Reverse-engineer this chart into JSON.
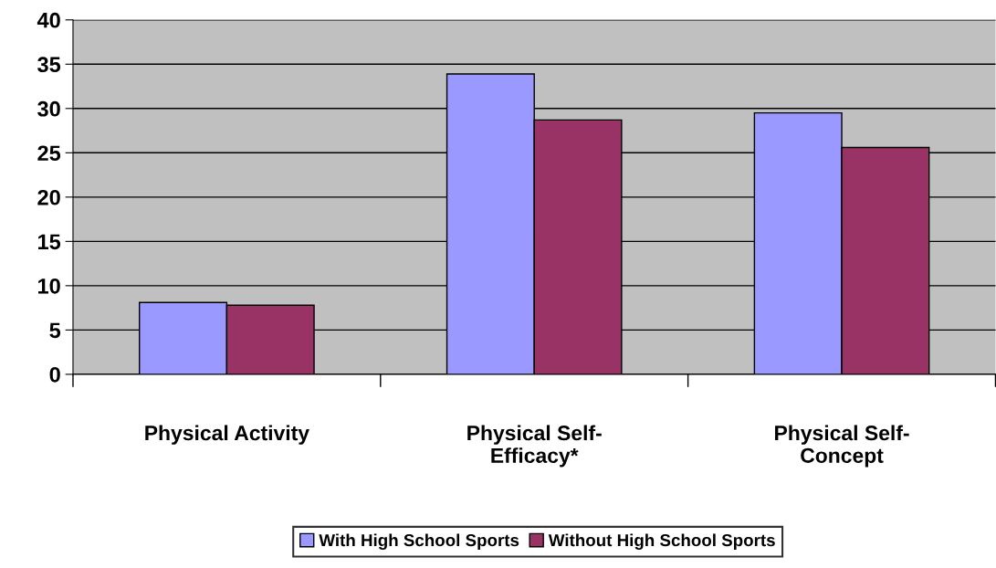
{
  "chart_data": {
    "type": "bar",
    "categories": [
      "Physical Activity",
      "Physical Self-\nEfficacy*",
      "Physical Self-\nConcept"
    ],
    "series": [
      {
        "name": "With High School Sports",
        "color": "#9999ff",
        "values": [
          8.1,
          33.9,
          29.5
        ]
      },
      {
        "name": "Without High School Sports",
        "color": "#993366",
        "values": [
          7.8,
          28.7,
          25.6
        ]
      }
    ],
    "ylim": [
      0,
      40
    ],
    "yticks": [
      0,
      5,
      10,
      15,
      20,
      25,
      30,
      35,
      40
    ],
    "grid": "y",
    "legend": "bottom"
  }
}
